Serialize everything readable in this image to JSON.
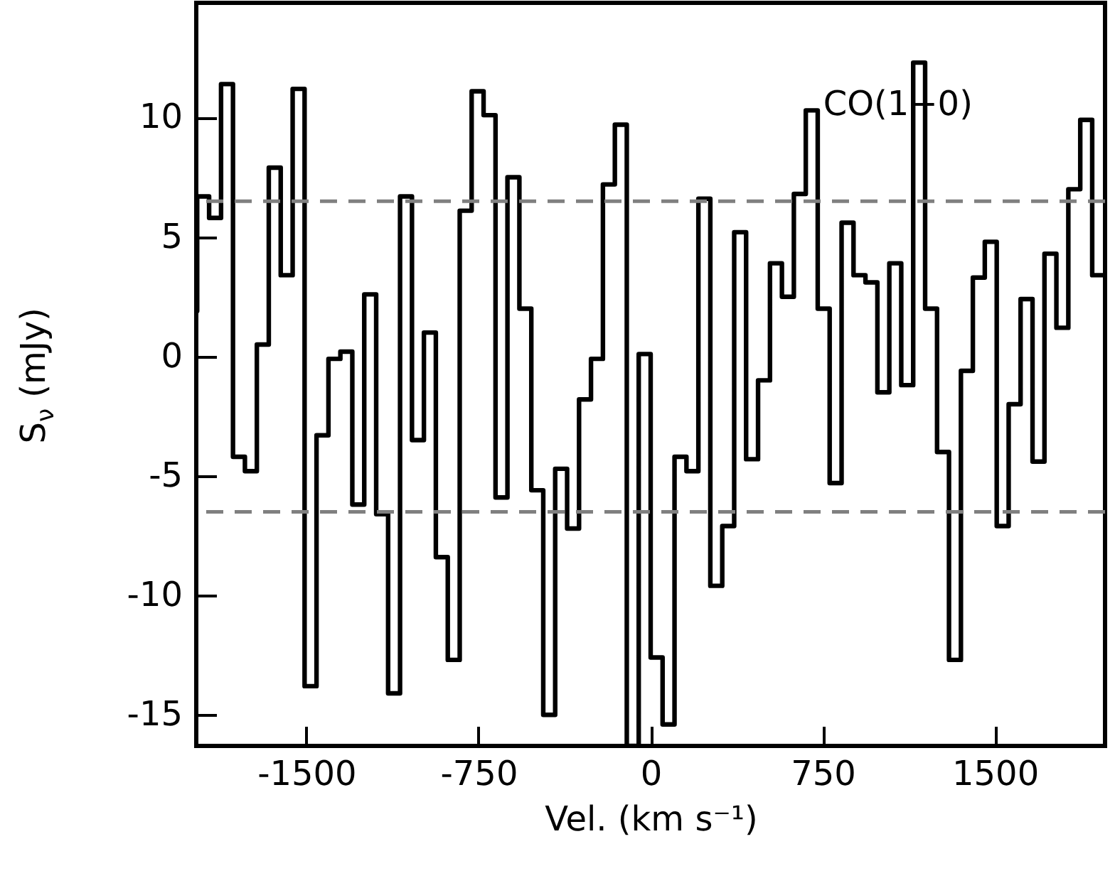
{
  "chart_data": {
    "type": "step",
    "xlabel": "Vel. (km s⁻¹)",
    "ylabel": "S$_{ν}$ (mJy)",
    "annotations": [
      "CO(1−0)"
    ],
    "x": [
      -1980,
      -1976,
      -1924,
      -1872,
      -1820,
      -1768,
      -1716,
      -1664,
      -1612,
      -1560,
      -1508,
      -1456,
      -1404,
      -1352,
      -1300,
      -1248,
      -1196,
      -1144,
      -1092,
      -1040,
      -988,
      -936,
      -884,
      -832,
      -780,
      -728,
      -676,
      -624,
      -572,
      -520,
      -468,
      -416,
      -364,
      -312,
      -260,
      -208,
      -156,
      -104,
      -52,
      0,
      52,
      104,
      156,
      208,
      260,
      312,
      364,
      416,
      468,
      520,
      572,
      624,
      676,
      728,
      780,
      832,
      884,
      936,
      988,
      1040,
      1092,
      1144,
      1196,
      1248,
      1300,
      1352,
      1404,
      1456,
      1508,
      1560,
      1612,
      1664,
      1716,
      1768,
      1820,
      1872,
      1924,
      1976
    ],
    "series": [
      {
        "color": "#000000",
        "values": [
          1.9,
          6.7,
          5.8,
          11.4,
          -4.2,
          -4.8,
          0.5,
          7.9,
          3.4,
          11.2,
          -13.8,
          -3.3,
          -0.1,
          0.2,
          -6.2,
          2.6,
          -6.6,
          -14.1,
          6.7,
          -3.5,
          1.0,
          -8.4,
          -12.7,
          6.1,
          11.1,
          10.1,
          -5.9,
          7.5,
          2.0,
          -5.6,
          -15.0,
          -4.7,
          -7.2,
          -1.8,
          -0.1,
          7.2,
          9.7,
          -16.3,
          0.1,
          -12.6,
          -15.4,
          -4.2,
          -4.8,
          6.6,
          -9.6,
          -7.1,
          5.2,
          -4.3,
          -1.0,
          3.9,
          2.5,
          6.8,
          10.3,
          2.0,
          -5.3,
          5.6,
          3.4,
          3.1,
          -1.5,
          3.9,
          -1.2,
          12.3,
          2.0,
          -4.0,
          -12.7,
          -0.6,
          3.3,
          4.8,
          -7.1,
          -2.0,
          2.4,
          -4.4,
          4.3,
          1.2,
          7.0,
          9.9,
          3.4,
          3.4
        ]
      }
    ],
    "xlim": [
      -1980,
      1980
    ],
    "ylim": [
      -16.3,
      14.8
    ],
    "xticks": [
      -1500,
      -750,
      0,
      750,
      1500
    ],
    "yticks": [
      -15,
      -10,
      -5,
      0,
      5,
      10
    ],
    "ref_lines": [
      {
        "axis": "y",
        "value": 6.5,
        "color": "#808080",
        "line_style": "dashed"
      },
      {
        "axis": "y",
        "value": -6.5,
        "color": "#808080",
        "line_style": "dashed"
      }
    ],
    "marker": "none",
    "line_style": "solid"
  }
}
